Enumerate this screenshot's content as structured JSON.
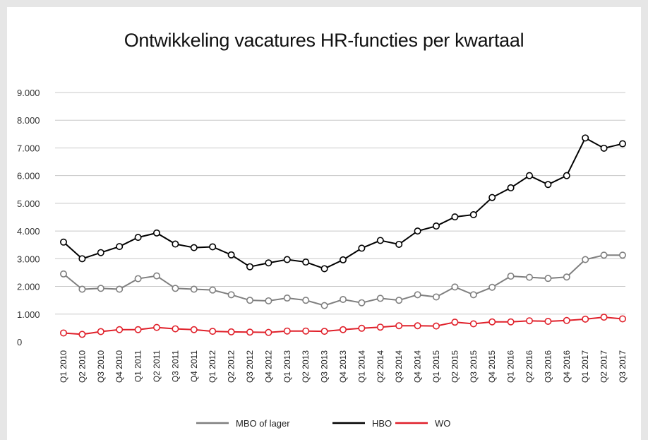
{
  "chart_data": {
    "type": "line",
    "title": "Ontwikkeling vacatures HR-functies per kwartaal",
    "xlabel": "",
    "ylabel": "",
    "ylim": [
      0,
      9000
    ],
    "yticks": [
      "0",
      "1.000",
      "2.000",
      "3.000",
      "4.000",
      "5.000",
      "6.000",
      "7.000",
      "8.000",
      "9.000"
    ],
    "grid": true,
    "legend": "bottom",
    "categories": [
      "Q1 2010",
      "Q2 2010",
      "Q3 2010",
      "Q4 2010",
      "Q1 2011",
      "Q2 2011",
      "Q3 2011",
      "Q4 2011",
      "Q1 2012",
      "Q2 2012",
      "Q3 2012",
      "Q4 2012",
      "Q1 2013",
      "Q2 2013",
      "Q3 2013",
      "Q4 2013",
      "Q1 2014",
      "Q2 2014",
      "Q3 2014",
      "Q4 2014",
      "Q1 2015",
      "Q2 2015",
      "Q3 2015",
      "Q4 2015",
      "Q1 2016",
      "Q2 2016",
      "Q3 2016",
      "Q4 2016",
      "Q1 2017",
      "Q2 2017",
      "Q3 2017"
    ],
    "series": [
      {
        "name": "MBO of lager",
        "color": "#7f7f7f",
        "values": [
          2450,
          1900,
          1930,
          1900,
          2280,
          2380,
          1930,
          1900,
          1870,
          1700,
          1500,
          1480,
          1580,
          1500,
          1310,
          1530,
          1410,
          1570,
          1500,
          1700,
          1620,
          1980,
          1700,
          1970,
          2370,
          2330,
          2290,
          2340,
          2970,
          3130,
          3130
        ]
      },
      {
        "name": "HBO",
        "color": "#000000",
        "values": [
          3600,
          3000,
          3220,
          3440,
          3770,
          3930,
          3530,
          3400,
          3430,
          3140,
          2710,
          2850,
          2970,
          2880,
          2640,
          2960,
          3380,
          3660,
          3520,
          4000,
          4180,
          4510,
          4590,
          5210,
          5560,
          6000,
          5680,
          6000,
          7360,
          6990,
          7150
        ]
      },
      {
        "name": "WO",
        "color": "#e0202a",
        "values": [
          320,
          270,
          370,
          440,
          440,
          520,
          470,
          440,
          380,
          360,
          350,
          340,
          390,
          390,
          380,
          440,
          490,
          530,
          580,
          580,
          570,
          710,
          650,
          720,
          720,
          760,
          740,
          770,
          820,
          890,
          830
        ]
      }
    ]
  }
}
